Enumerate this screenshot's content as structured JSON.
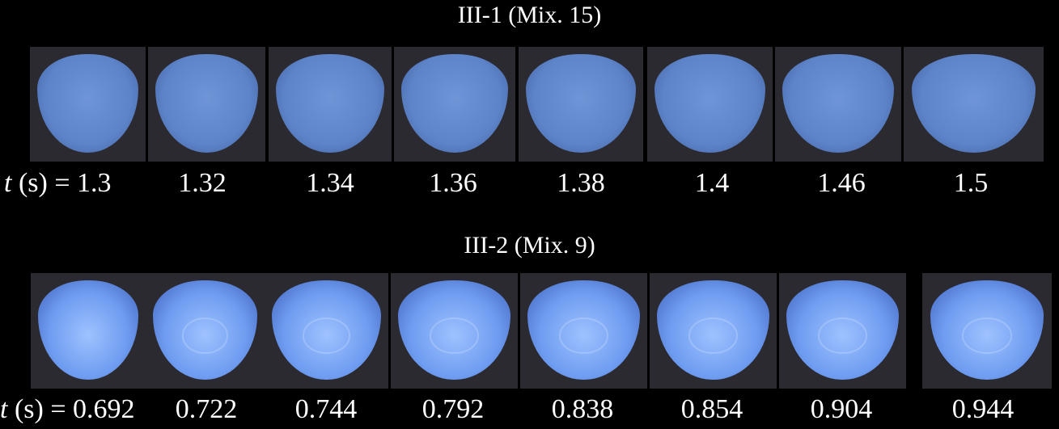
{
  "rows": [
    {
      "title": "III-1 (Mix. 15)",
      "var": "t",
      "unit": "(s) =",
      "times": [
        1.3,
        1.32,
        1.34,
        1.36,
        1.38,
        1.4,
        1.46,
        1.5
      ]
    },
    {
      "title": "III-2 (Mix. 9)",
      "var": "t",
      "unit": "(s) =",
      "times": [
        0.692,
        0.722,
        0.744,
        0.792,
        0.838,
        0.854,
        0.904,
        0.944
      ]
    }
  ]
}
